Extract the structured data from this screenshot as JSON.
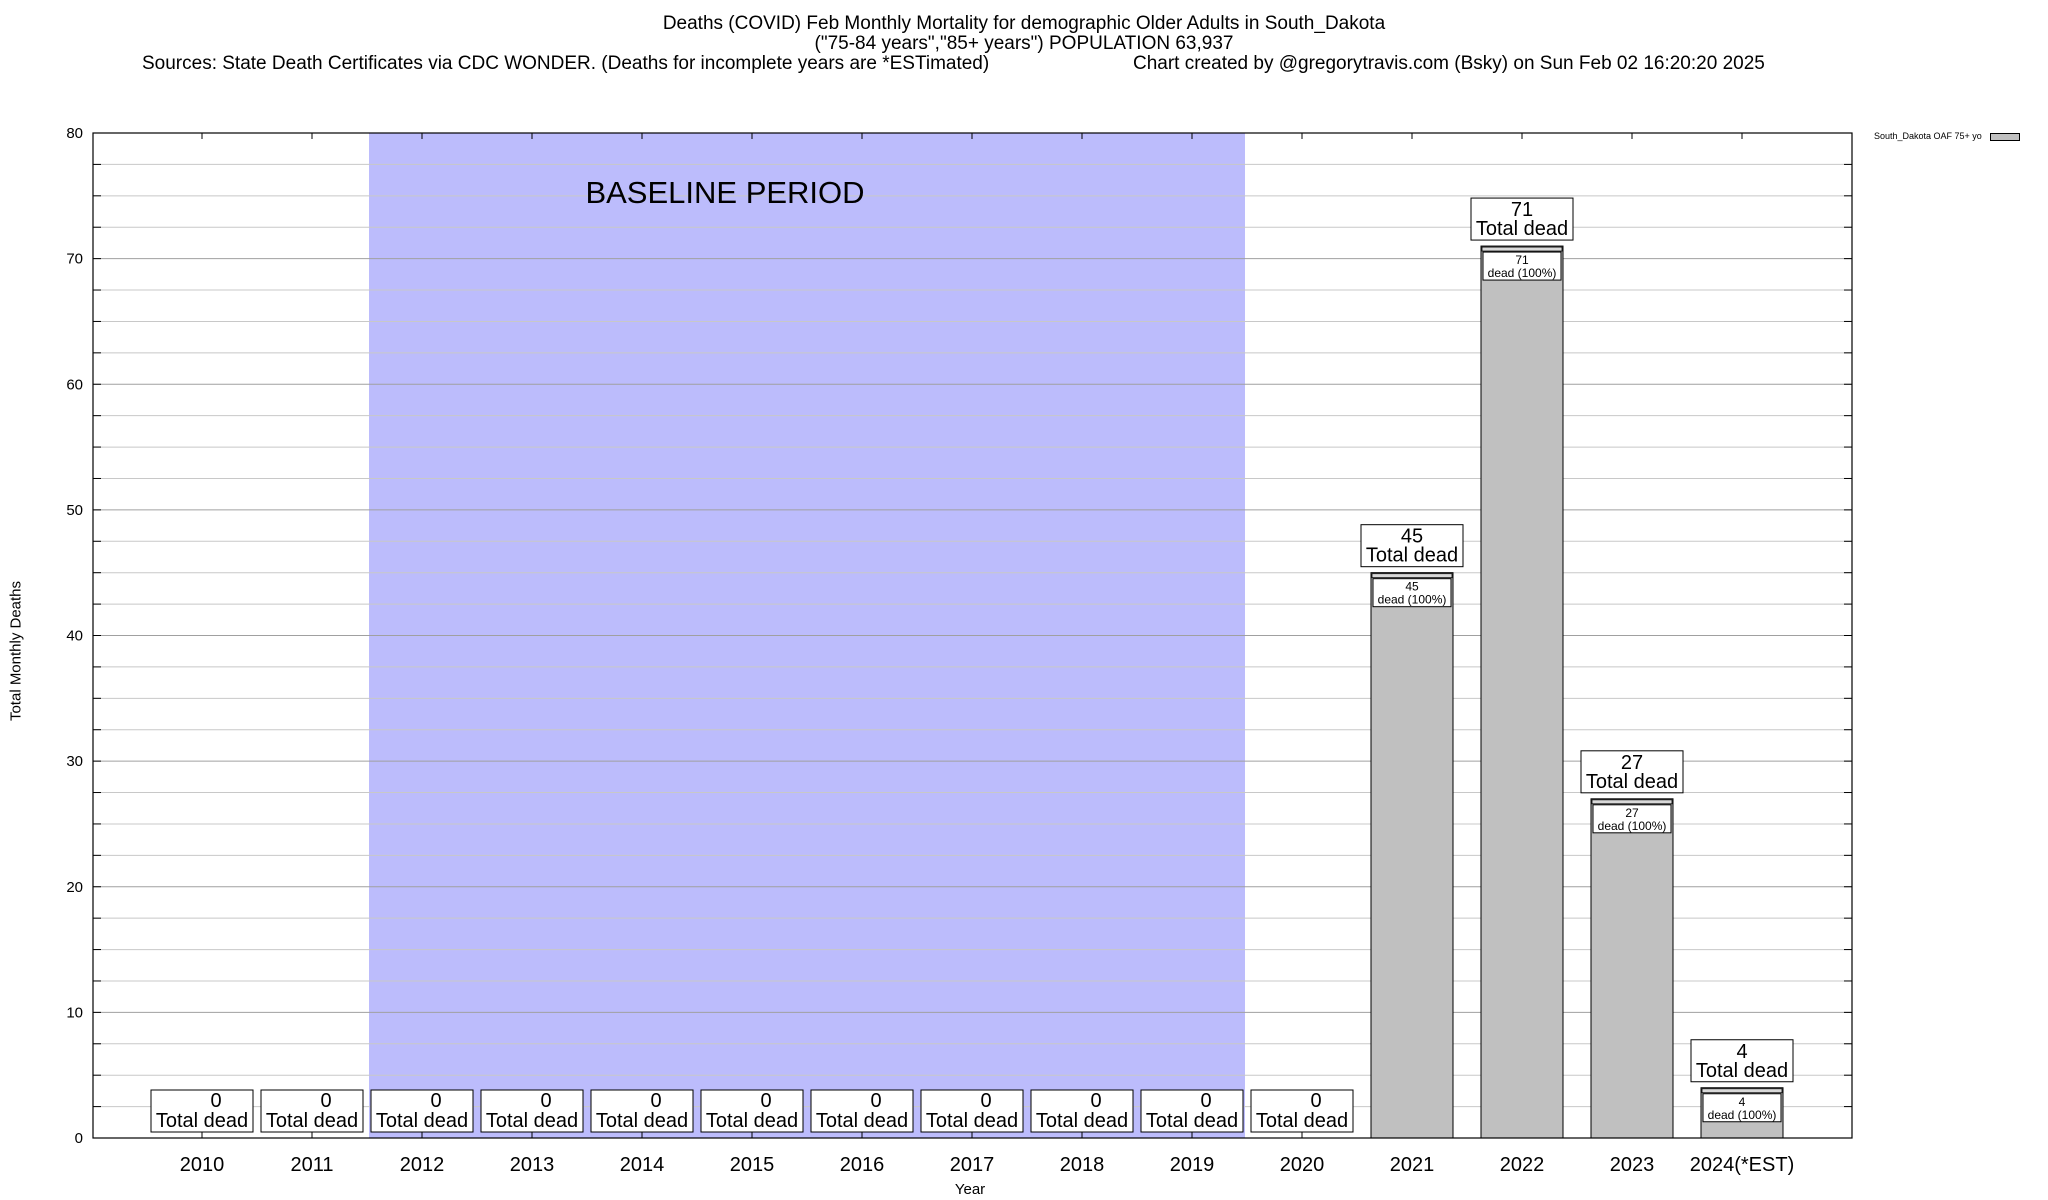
{
  "header": {
    "title": "Deaths (COVID) Feb Monthly Mortality for demographic Older Adults in South_Dakota",
    "subtitle": "(\"75-84 years\",\"85+ years\") POPULATION 63,937",
    "sources": "Sources: State Death Certificates via CDC WONDER. (Deaths for incomplete years are *ESTimated)",
    "credit": "Chart created by @gregorytravis.com (Bsky) on Sun Feb 02 16:20:20 2025"
  },
  "chart_data": {
    "type": "bar",
    "title": "Deaths (COVID) Feb Monthly Mortality for demographic Older Adults in South_Dakota",
    "xlabel": "Year",
    "ylabel": "Total Monthly Deaths",
    "ylim": [
      0,
      80
    ],
    "yticks": [
      0,
      10,
      20,
      30,
      40,
      50,
      60,
      70,
      80
    ],
    "grid": true,
    "legend_position": "top-right",
    "categories": [
      "2010",
      "2011",
      "2012",
      "2013",
      "2014",
      "2015",
      "2016",
      "2017",
      "2018",
      "2019",
      "2020",
      "2021",
      "2022",
      "2023",
      "2024(*EST)"
    ],
    "series": [
      {
        "name": "South_Dakota OAF 75+ yo",
        "values": [
          0,
          0,
          0,
          0,
          0,
          0,
          0,
          0,
          0,
          0,
          0,
          45,
          71,
          27,
          4
        ],
        "color": "#c0c0c0"
      }
    ],
    "total_label": "Total dead",
    "segment_label": "dead (100%)",
    "baseline": {
      "label": "BASELINE PERIOD",
      "from": "2012",
      "to": "2019",
      "color": "#bcbcfc"
    }
  }
}
